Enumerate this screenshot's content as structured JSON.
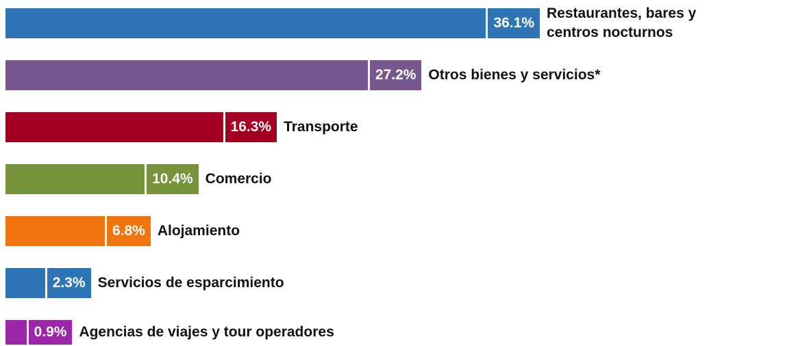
{
  "chart_data": {
    "type": "bar",
    "orientation": "horizontal",
    "categories": [
      "Restaurantes, bares y centros nocturnos",
      "Otros bienes y servicios*",
      "Transporte",
      "Comercio",
      "Alojamiento",
      "Servicios de esparcimiento",
      "Agencias de viajes y tour operadores"
    ],
    "values": [
      36.1,
      27.2,
      16.3,
      10.4,
      6.8,
      2.3,
      0.9
    ],
    "value_labels": [
      "36.1%",
      "27.2%",
      "16.3%",
      "10.4%",
      "6.8%",
      "2.3%",
      "0.9%"
    ],
    "colors": [
      "#2e75b6",
      "#76588f",
      "#a50021",
      "#77933c",
      "#f0750f",
      "#2e75b6",
      "#9b27a8"
    ]
  }
}
